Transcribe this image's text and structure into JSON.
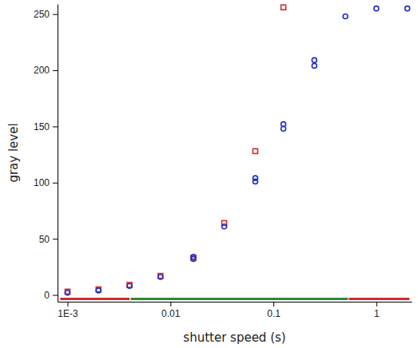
{
  "chart_data": {
    "type": "scatter",
    "x_label": "shutter speed (s)",
    "y_label": "gray level",
    "log": "x",
    "xlim": [
      0.0008,
      2.2
    ],
    "ylim": [
      -6,
      259
    ],
    "xticks": [
      {
        "value": 0.001,
        "label": "1E-3"
      },
      0.01,
      0.1,
      1
    ],
    "yticks": [
      0,
      50,
      100,
      150,
      200,
      250
    ],
    "series": [
      {
        "type": "scatter",
        "color": "#d42a2a",
        "marker": "square",
        "x": [
          0.001,
          0.002,
          0.004,
          0.008,
          0.0167,
          0.0333,
          0.0667,
          0.125
        ],
        "values": [
          3,
          5,
          9,
          17,
          33,
          64,
          128,
          256
        ]
      },
      {
        "type": "scatter",
        "color": "#1f2fbf",
        "marker": "circle",
        "x": [
          0.001,
          0.002,
          0.004,
          0.008,
          0.0167,
          0.0167,
          0.0333,
          0.0667,
          0.0667,
          0.125,
          0.125,
          0.25,
          0.25,
          0.5,
          1,
          2
        ],
        "values": [
          2,
          4,
          8,
          16,
          32,
          34,
          61,
          101,
          104,
          148,
          152,
          204,
          209,
          248,
          255,
          255
        ]
      },
      {
        "type": "line",
        "color": "#d42a2a",
        "line_style": "solid",
        "x": [
          0.00085,
          0.004
        ],
        "values": [
          -3.5,
          -3.5
        ]
      },
      {
        "type": "line",
        "color": "#2e8b2e",
        "line_style": "solid",
        "x": [
          0.0041,
          0.53
        ],
        "values": [
          -3.5,
          -3.5
        ]
      },
      {
        "type": "line",
        "color": "#d42a2a",
        "line_style": "solid",
        "x": [
          0.54,
          2.1
        ],
        "values": [
          -3.5,
          -3.5
        ]
      }
    ]
  }
}
